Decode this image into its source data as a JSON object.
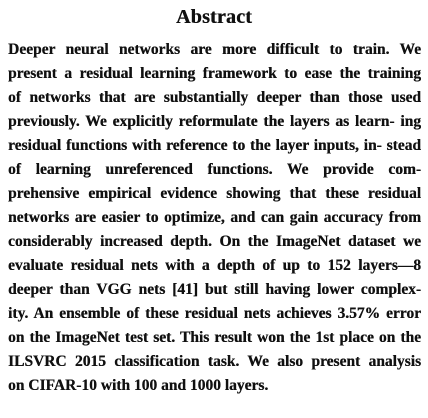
{
  "heading": "Abstract",
  "body_lines": [
    "Deeper neural networks are more difficult to train. We",
    "present a residual learning framework to ease the training",
    "of networks that are substantially deeper than those used",
    "previously. We explicitly reformulate the layers as learn- ing",
    "residual functions with reference to the layer inputs, in- stead",
    "of learning unreferenced functions. We provide com-",
    "prehensive empirical evidence showing that these residual",
    "networks are easier to optimize, and can gain accuracy from",
    "considerably increased depth. On the ImageNet dataset we",
    "evaluate residual nets with a depth of up to 152 layers—8",
    "deeper than VGG nets [41] but still having lower complex-",
    "ity. An ensemble of these residual nets achieves 3.57% error",
    "on the ImageNet test set. This result won the 1st place on the",
    "ILSVRC 2015 classification task. We also present analysis",
    "on CIFAR-10 with 100 and 1000 layers."
  ]
}
